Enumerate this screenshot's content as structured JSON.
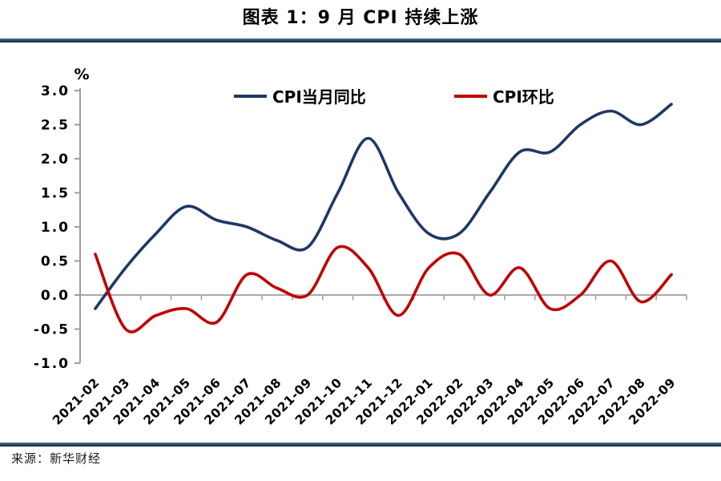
{
  "page": {
    "title": "图表 1：9 月 CPI 持续上涨",
    "source": "来源：新华财经",
    "unit_label": "%"
  },
  "chart_data": {
    "type": "line",
    "title": "图表 1：9 月 CPI 持续上涨",
    "unit": "%",
    "smoothed": true,
    "legend_position": "top-inside",
    "grid": "zero-line-only",
    "axis": {
      "ylim": [
        -1.0,
        3.0
      ],
      "ytick_step": 0.5,
      "ytick_labels": [
        "3.0",
        "2.5",
        "2.0",
        "1.5",
        "1.0",
        "0.5",
        "0.0",
        "-0.5",
        "-1.0"
      ],
      "x_labels_rotation_deg": -45,
      "axis_color": "#9E9E9E"
    },
    "categories": [
      "2021-02",
      "2021-03",
      "2021-04",
      "2021-05",
      "2021-06",
      "2021-07",
      "2021-08",
      "2021-09",
      "2021-10",
      "2021-11",
      "2021-12",
      "2022-01",
      "2022-02",
      "2022-03",
      "2022-04",
      "2022-05",
      "2022-06",
      "2022-07",
      "2022-08",
      "2022-09"
    ],
    "series": [
      {
        "name": "CPI当月同比",
        "color": "#1F3864",
        "values": [
          -0.2,
          0.4,
          0.9,
          1.3,
          1.1,
          1.0,
          0.8,
          0.7,
          1.5,
          2.3,
          1.5,
          0.9,
          0.9,
          1.5,
          2.1,
          2.1,
          2.5,
          2.7,
          2.5,
          2.8
        ]
      },
      {
        "name": "CPI环比",
        "color": "#C00000",
        "values": [
          0.6,
          -0.5,
          -0.3,
          -0.2,
          -0.4,
          0.3,
          0.1,
          0.0,
          0.7,
          0.4,
          -0.3,
          0.4,
          0.6,
          0.0,
          0.4,
          -0.2,
          0.0,
          0.5,
          -0.1,
          0.3
        ]
      }
    ]
  },
  "colors": {
    "rule_gradient_top": "#517694",
    "rule_gradient_bottom": "#16314E",
    "axis_gray": "#9E9E9E",
    "text": "#000000"
  }
}
